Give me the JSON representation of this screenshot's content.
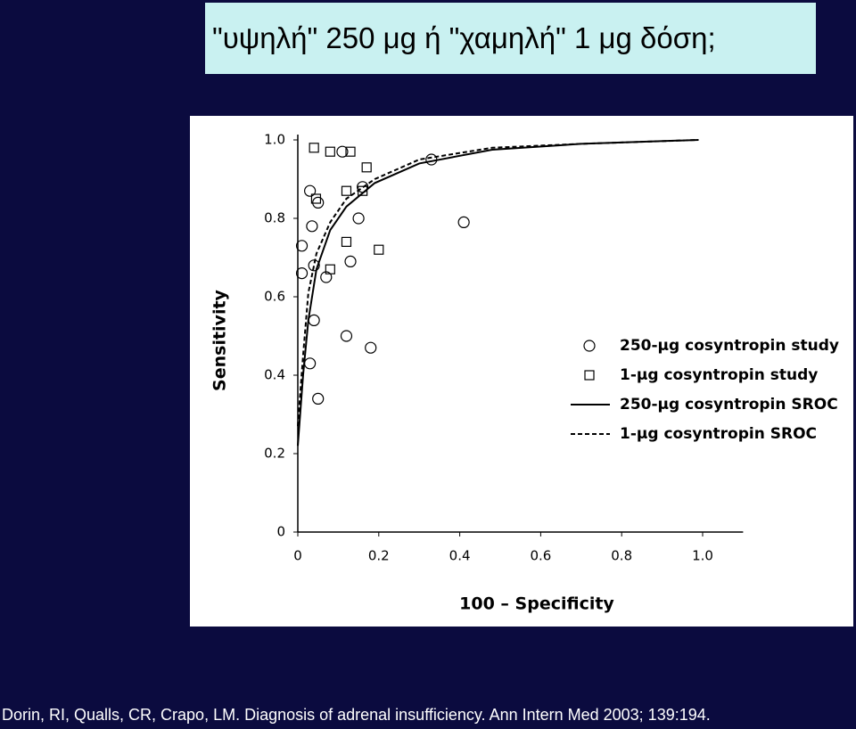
{
  "slide_title": "\"υψηλή\" 250 μg ή \"χαμηλή\" 1 μg δόση;",
  "citation": "Dorin, RI, Qualls, CR, Crapo, LM. Diagnosis of adrenal insufficiency. Ann Intern Med 2003; 139:194.",
  "chart_data": {
    "type": "scatter",
    "x_label": "100 – Specificity",
    "y_label": "Sensitivity",
    "xlim": [
      0,
      1.1
    ],
    "ylim": [
      0,
      1.0
    ],
    "xticks": [
      0,
      0.2,
      0.4,
      0.6,
      0.8,
      {
        "value": 1,
        "label": "1.0"
      }
    ],
    "yticks": [
      0,
      0.2,
      0.4,
      0.6,
      0.8,
      {
        "value": 1,
        "label": "1.0"
      }
    ],
    "legend": "right",
    "series": [
      {
        "name": "250-μg cosyntropin study",
        "marker": "circle",
        "color": "#000000",
        "x": [
          0.01,
          0.01,
          0.03,
          0.035,
          0.04,
          0.05,
          0.04,
          0.03,
          0.05,
          0.12,
          0.13,
          0.15,
          0.16,
          0.11,
          0.18,
          0.33,
          0.41,
          0.07
        ],
        "values": [
          0.73,
          0.66,
          0.87,
          0.78,
          0.68,
          0.84,
          0.54,
          0.43,
          0.34,
          0.5,
          0.69,
          0.8,
          0.88,
          0.97,
          0.47,
          0.95,
          0.79,
          0.65
        ]
      },
      {
        "name": "1-μg cosyntropin study",
        "marker": "square",
        "color": "#000000",
        "x": [
          0.04,
          0.08,
          0.13,
          0.17,
          0.12,
          0.16,
          0.12,
          0.2,
          0.08,
          0.045
        ],
        "values": [
          0.98,
          0.97,
          0.97,
          0.93,
          0.87,
          0.87,
          0.74,
          0.72,
          0.67,
          0.85
        ]
      },
      {
        "name": "250-μg cosyntropin SROC",
        "line": "solid",
        "color": "#000000",
        "x": [
          0,
          0.013,
          0.026,
          0.046,
          0.08,
          0.12,
          0.19,
          0.3,
          0.48,
          0.7,
          0.99
        ],
        "values": [
          0.22,
          0.4,
          0.54,
          0.67,
          0.77,
          0.83,
          0.89,
          0.94,
          0.975,
          0.99,
          1.0
        ]
      },
      {
        "name": "1-μg cosyntropin SROC",
        "line": "dashed",
        "color": "#000000",
        "x": [
          0,
          0.013,
          0.026,
          0.046,
          0.08,
          0.12,
          0.19,
          0.3,
          0.48,
          0.7,
          0.99
        ],
        "values": [
          0.27,
          0.45,
          0.61,
          0.71,
          0.79,
          0.85,
          0.9,
          0.95,
          0.98,
          0.99,
          1.0
        ]
      }
    ]
  }
}
